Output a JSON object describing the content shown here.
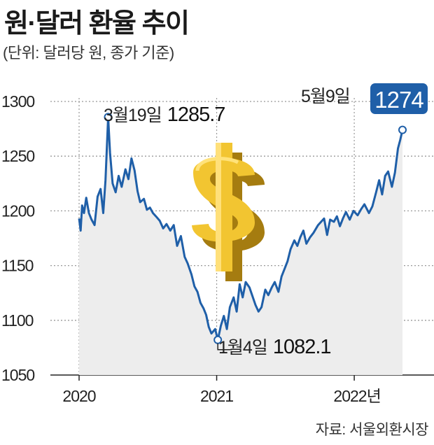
{
  "title": "원·달러 환율 추이",
  "subtitle": "(단위: 달러당 원, 종가 기준)",
  "source": "자료: 서울외환시장",
  "colors": {
    "line": "#1f5fa8",
    "area": "#ededed",
    "badge": "#1f5fa8",
    "grid": "#999999",
    "dollar": "#e8b820"
  },
  "icon": "gold-dollar-sign-icon",
  "chart_data": {
    "type": "line",
    "title": "원·달러 환율 추이",
    "ylim": [
      1050,
      1300
    ],
    "yticks": [
      "1050",
      "1100",
      "1150",
      "1200",
      "1250",
      "1300"
    ],
    "xticks": [
      "2020",
      "2021",
      "2022년"
    ],
    "x": [
      "2020-01-02",
      "2020-01-06",
      "2020-01-10",
      "2020-01-15",
      "2020-01-21",
      "2020-01-28",
      "2020-02-04",
      "2020-02-12",
      "2020-02-20",
      "2020-02-28",
      "2020-03-06",
      "2020-03-12",
      "2020-03-19",
      "2020-03-24",
      "2020-03-31",
      "2020-04-08",
      "2020-04-16",
      "2020-04-24",
      "2020-05-04",
      "2020-05-12",
      "2020-05-20",
      "2020-05-28",
      "2020-06-05",
      "2020-06-12",
      "2020-06-22",
      "2020-06-30",
      "2020-07-08",
      "2020-07-16",
      "2020-07-24",
      "2020-08-03",
      "2020-08-12",
      "2020-08-21",
      "2020-08-31",
      "2020-09-09",
      "2020-09-18",
      "2020-09-28",
      "2020-10-08",
      "2020-10-16",
      "2020-10-26",
      "2020-11-03",
      "2020-11-11",
      "2020-11-19",
      "2020-11-27",
      "2020-12-04",
      "2020-12-11",
      "2020-12-18",
      "2020-12-28",
      "2021-01-04",
      "2021-01-12",
      "2021-01-20",
      "2021-01-28",
      "2021-02-05",
      "2021-02-15",
      "2021-02-23",
      "2021-03-03",
      "2021-03-11",
      "2021-03-19",
      "2021-03-29",
      "2021-04-06",
      "2021-04-14",
      "2021-04-22",
      "2021-04-30",
      "2021-05-10",
      "2021-05-18",
      "2021-05-27",
      "2021-06-04",
      "2021-06-14",
      "2021-06-22",
      "2021-06-30",
      "2021-07-08",
      "2021-07-16",
      "2021-07-26",
      "2021-08-03",
      "2021-08-11",
      "2021-08-19",
      "2021-08-27",
      "2021-09-06",
      "2021-09-15",
      "2021-09-27",
      "2021-10-05",
      "2021-10-13",
      "2021-10-21",
      "2021-10-29",
      "2021-11-08",
      "2021-11-16",
      "2021-11-24",
      "2021-12-02",
      "2021-12-10",
      "2021-12-20",
      "2021-12-30",
      "2022-01-10",
      "2022-01-20",
      "2022-01-28",
      "2022-02-09",
      "2022-02-18",
      "2022-02-28",
      "2022-03-08",
      "2022-03-16",
      "2022-03-24",
      "2022-04-01",
      "2022-04-11",
      "2022-04-19",
      "2022-04-27",
      "2022-05-03",
      "2022-05-09"
    ],
    "series": [
      {
        "values": [
          1193,
          1182,
          1205,
          1198,
          1212,
          1198,
          1192,
          1187,
          1213,
          1220,
          1198,
          1228,
          1285.7,
          1253,
          1225,
          1217,
          1232,
          1222,
          1238,
          1229,
          1248,
          1237,
          1218,
          1208,
          1211,
          1201,
          1203,
          1198,
          1195,
          1191,
          1184,
          1188,
          1182,
          1187,
          1168,
          1177,
          1158,
          1152,
          1142,
          1131,
          1126,
          1116,
          1111,
          1105,
          1094,
          1088,
          1092,
          1082.1,
          1095,
          1104,
          1092,
          1112,
          1121,
          1108,
          1133,
          1121,
          1135,
          1130,
          1122,
          1114,
          1108,
          1112,
          1128,
          1123,
          1130,
          1135,
          1126,
          1140,
          1147,
          1154,
          1165,
          1173,
          1168,
          1176,
          1182,
          1170,
          1176,
          1180,
          1187,
          1190,
          1193,
          1178,
          1192,
          1190,
          1195,
          1186,
          1193,
          1199,
          1192,
          1200,
          1196,
          1202,
          1206,
          1198,
          1204,
          1217,
          1228,
          1215,
          1232,
          1236,
          1222,
          1235,
          1257,
          1265,
          1274
        ]
      }
    ]
  },
  "annotations": {
    "max": {
      "date": "3월19일",
      "value": "1285.7"
    },
    "min": {
      "date": "1월4일",
      "value": "1082.1"
    },
    "last": {
      "date": "5월9일",
      "value": "1274"
    }
  }
}
